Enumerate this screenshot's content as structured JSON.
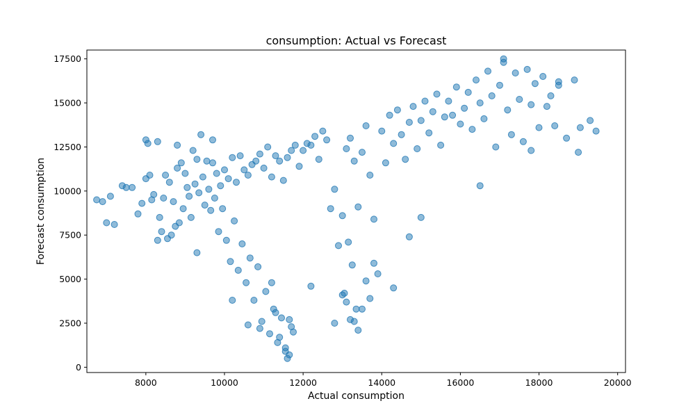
{
  "chart_data": {
    "type": "scatter",
    "title": "consumption: Actual vs Forecast",
    "xlabel": "Actual consumption",
    "ylabel": "Forecast consumption",
    "xlim": [
      6500,
      20200
    ],
    "ylim": [
      -300,
      18000
    ],
    "xticks": [
      8000,
      10000,
      12000,
      14000,
      16000,
      18000,
      20000
    ],
    "yticks": [
      0,
      2500,
      5000,
      7500,
      10000,
      12500,
      15000,
      17500
    ],
    "grid": false,
    "legend": "none",
    "color": "#1f77b4",
    "marker_alpha": 0.5,
    "series": [
      {
        "x": [
          6750,
          6900,
          7000,
          7100,
          7200,
          7400,
          7500,
          7650,
          7800,
          7900,
          8000,
          8050,
          8100,
          8150,
          8200,
          8300,
          8350,
          8400,
          8450,
          8500,
          8550,
          8600,
          8650,
          8700,
          8750,
          8800,
          8850,
          8900,
          8950,
          9000,
          9050,
          9100,
          9150,
          9200,
          9250,
          9300,
          9350,
          9400,
          9450,
          9500,
          9550,
          9600,
          9650,
          9700,
          9750,
          9800,
          9850,
          9900,
          9950,
          10000,
          10050,
          10100,
          10150,
          10200,
          10250,
          10300,
          10350,
          10400,
          10450,
          10500,
          10550,
          10600,
          10650,
          10700,
          10750,
          10800,
          10850,
          10900,
          10950,
          11000,
          11050,
          11100,
          11150,
          11200,
          11250,
          11300,
          11350,
          11400,
          11450,
          11500,
          11550,
          11600,
          11650,
          11700,
          11750,
          11800,
          11900,
          12000,
          12100,
          12200,
          12300,
          12400,
          12500,
          12600,
          12700,
          12800,
          12900,
          13000,
          13050,
          13100,
          13150,
          13200,
          13250,
          13300,
          13350,
          13400,
          13500,
          13600,
          13700,
          13800,
          13900,
          14000,
          14100,
          14200,
          14300,
          14400,
          14500,
          14600,
          14700,
          14800,
          14900,
          15000,
          15100,
          15200,
          15300,
          15400,
          15500,
          15600,
          15700,
          15800,
          15900,
          16000,
          16100,
          16200,
          16300,
          16400,
          16500,
          16600,
          16700,
          16800,
          16900,
          17000,
          17100,
          17200,
          17300,
          17400,
          17500,
          17600,
          17700,
          17800,
          17900,
          18000,
          18100,
          18200,
          18300,
          18400,
          18500,
          18700,
          18900,
          19050,
          19300,
          19450,
          8000,
          8300,
          8800,
          9300,
          9700,
          10200,
          10600,
          10900,
          11200,
          11300,
          11400,
          11550,
          11600,
          11650,
          11700,
          12200,
          12800,
          13000,
          13100,
          13200,
          13300,
          13400,
          13500,
          13600,
          13700,
          13800,
          14300,
          14700,
          15000,
          16500,
          17100,
          17800,
          18500,
          19000
        ],
        "y": [
          9500,
          9400,
          8200,
          9700,
          8100,
          10300,
          10200,
          10200,
          8700,
          9300,
          10700,
          12700,
          10900,
          9500,
          9800,
          12800,
          8500,
          7700,
          9600,
          10900,
          7300,
          10500,
          7500,
          9400,
          8000,
          11300,
          8200,
          11600,
          9000,
          11000,
          10200,
          9700,
          8500,
          12300,
          10400,
          11800,
          9900,
          13200,
          10800,
          9200,
          11700,
          10100,
          8900,
          12900,
          9600,
          11000,
          7700,
          10300,
          9000,
          11200,
          7200,
          10700,
          6000,
          11900,
          8300,
          10500,
          5500,
          12000,
          7000,
          11200,
          4800,
          10900,
          6200,
          11500,
          3800,
          11700,
          5700,
          12100,
          2600,
          11300,
          4300,
          12500,
          1900,
          10800,
          3300,
          12000,
          1400,
          11700,
          2800,
          10600,
          1100,
          11900,
          700,
          12300,
          2000,
          12600,
          11400,
          12300,
          12700,
          12600,
          13100,
          11800,
          13400,
          12900,
          9000,
          10100,
          6900,
          8600,
          4200,
          12400,
          7100,
          13000,
          5800,
          11700,
          3300,
          9100,
          12200,
          13700,
          10900,
          8400,
          5300,
          13400,
          11600,
          14300,
          12700,
          14600,
          13200,
          11800,
          13900,
          14800,
          12400,
          14000,
          15100,
          13300,
          14500,
          15500,
          12600,
          14200,
          15100,
          14300,
          15900,
          13800,
          14700,
          15600,
          13500,
          16300,
          15000,
          14100,
          16800,
          15400,
          12500,
          16000,
          17300,
          14600,
          13200,
          16700,
          15200,
          12800,
          16900,
          14900,
          16100,
          13600,
          16500,
          14800,
          15400,
          13700,
          16200,
          13000,
          16300,
          13600,
          14000,
          13400,
          12900,
          7200,
          12600,
          6500,
          11600,
          3800,
          2400,
          2200,
          4800,
          3100,
          1700,
          900,
          500,
          2700,
          2300,
          4600,
          2500,
          4100,
          3700,
          2700,
          2600,
          2100,
          3300,
          4900,
          3900,
          5900,
          4500,
          7400,
          8500,
          10300,
          17500,
          12300,
          16000,
          12200
        ]
      }
    ]
  }
}
